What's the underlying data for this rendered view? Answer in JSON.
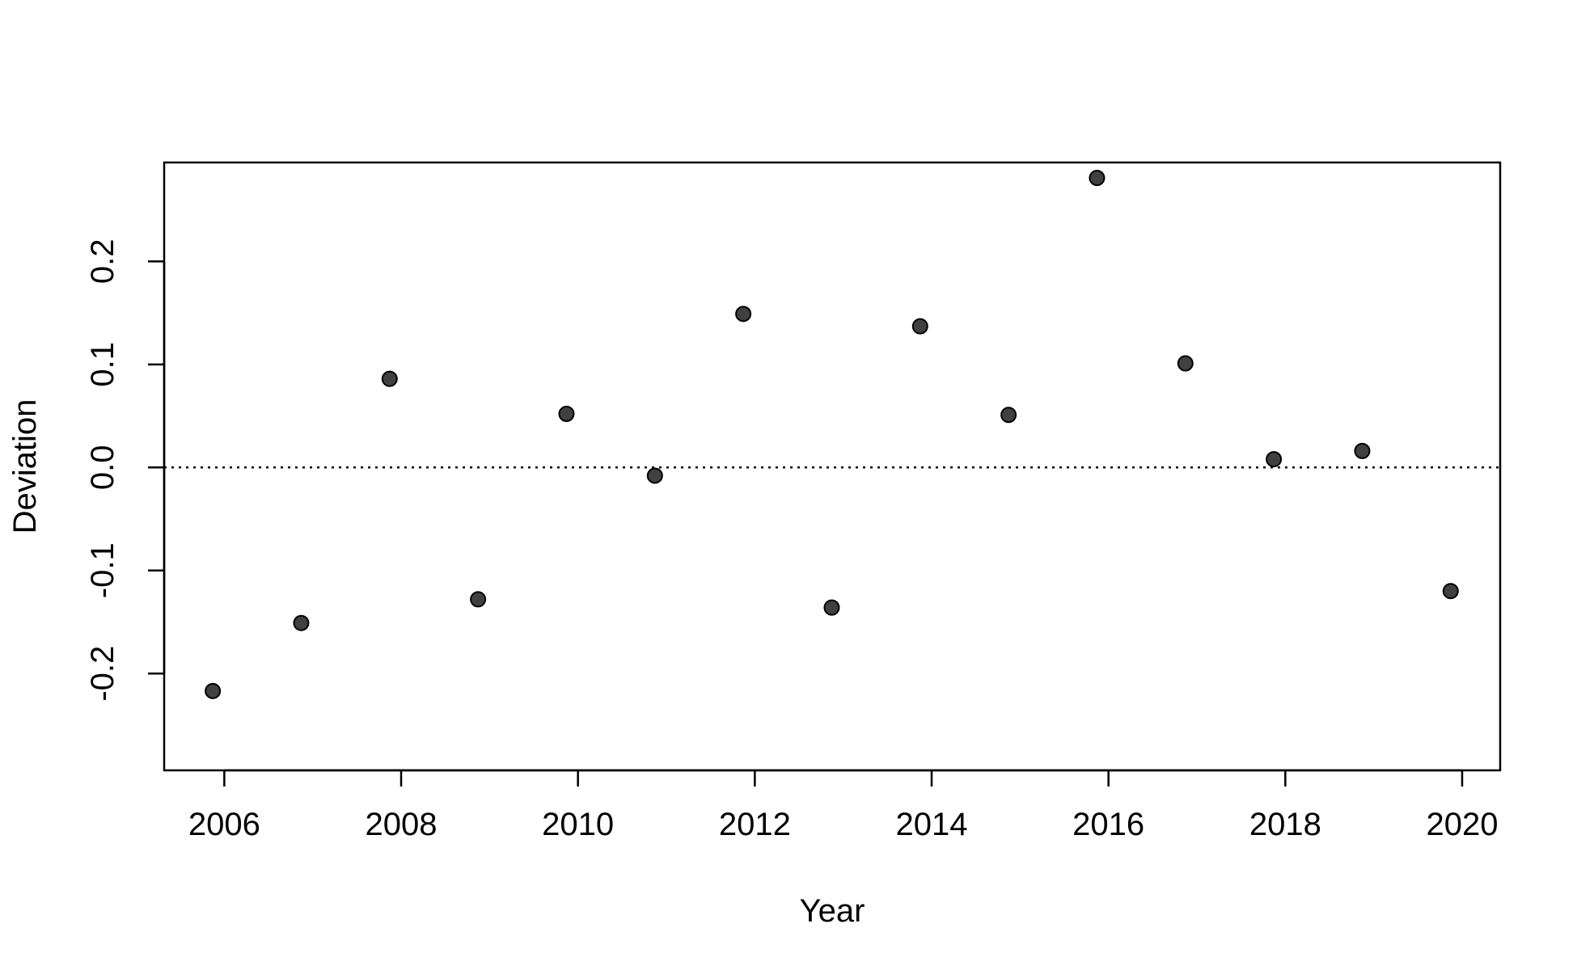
{
  "chart_data": {
    "type": "scatter",
    "xlabel": "Year",
    "ylabel": "Deviation",
    "x_ticks": [
      2006,
      2008,
      2010,
      2012,
      2014,
      2016,
      2018,
      2020
    ],
    "y_ticks": [
      -0.2,
      -0.1,
      0.0,
      0.1,
      0.2
    ],
    "y_tick_labels": [
      "-0.2",
      "-0.1",
      "0.0",
      "0.1",
      "0.2"
    ],
    "xlim": [
      2005.32,
      2020.43
    ],
    "ylim": [
      -0.294,
      0.296
    ],
    "reference_line": {
      "y": 0.0,
      "style": "dotted"
    },
    "point_color": "#404040",
    "series": [
      {
        "x": [
          2005.87,
          2006.87,
          2007.87,
          2008.87,
          2009.87,
          2010.87,
          2011.87,
          2012.87,
          2013.87,
          2014.87,
          2015.87,
          2016.87,
          2017.87,
          2018.87,
          2019.87
        ],
        "y": [
          -0.217,
          -0.151,
          0.086,
          -0.128,
          0.052,
          -0.008,
          0.149,
          -0.136,
          0.137,
          0.051,
          0.281,
          0.101,
          0.008,
          0.016,
          -0.12
        ]
      }
    ]
  }
}
